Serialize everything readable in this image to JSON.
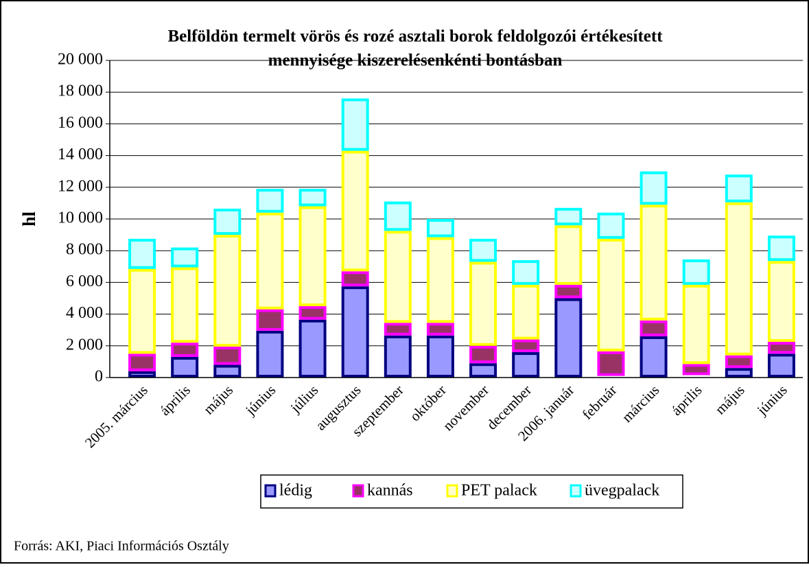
{
  "chart_data": {
    "type": "stacked_bar",
    "title": [
      "Belföldön termelt vörös és rozé asztali borok feldolgozói értékesített",
      "mennyisége kiszerelésenkénti bontásban"
    ],
    "y_label": "hl",
    "source": "Forrás: AKI, Piaci Információs Osztály",
    "categories": [
      "2005. március",
      "április",
      "május",
      "június",
      "július",
      "augusztus",
      "szeptember",
      "október",
      "november",
      "december",
      "2006. január",
      "február",
      "március",
      "április",
      "május",
      "június"
    ],
    "series": [
      {
        "name": "lédig",
        "color": "#9999ff",
        "stroke": "#000080",
        "values": [
          400,
          1300,
          800,
          2950,
          3650,
          5750,
          2650,
          2650,
          900,
          1600,
          5000,
          100,
          2600,
          150,
          600,
          1500
        ]
      },
      {
        "name": "kannás",
        "color": "#993366",
        "stroke": "#ff00ff",
        "values": [
          1100,
          900,
          1150,
          1350,
          850,
          950,
          800,
          800,
          1100,
          800,
          850,
          1550,
          1000,
          700,
          800,
          750
        ]
      },
      {
        "name": "PET palack",
        "color": "#ffffcc",
        "stroke": "#ffff00",
        "values": [
          5350,
          4750,
          7050,
          6100,
          6300,
          7600,
          5800,
          5400,
          5300,
          3450,
          3750,
          7100,
          7300,
          5000,
          9650,
          5100
        ]
      },
      {
        "name": "üvegpalack",
        "color": "#ccffff",
        "stroke": "#00ffff",
        "values": [
          1900,
          1250,
          1650,
          1500,
          1100,
          3300,
          1850,
          1150,
          1450,
          1550,
          1100,
          1650,
          2100,
          1600,
          1750,
          1600
        ]
      }
    ],
    "ylim": [
      0,
      20000
    ],
    "yticks": [
      0,
      {
        "value": 2000,
        "label": "2 000"
      },
      {
        "value": 4000,
        "label": "4 000"
      },
      {
        "value": 6000,
        "label": "6 000"
      },
      {
        "value": 8000,
        "label": "8 000"
      },
      {
        "value": 10000,
        "label": "10 000"
      },
      {
        "value": 12000,
        "label": "12 000"
      },
      {
        "value": 14000,
        "label": "14 000"
      },
      {
        "value": 16000,
        "label": "16 000"
      },
      {
        "value": 18000,
        "label": "18 000"
      },
      {
        "value": 20000,
        "label": "20 000"
      }
    ],
    "grid": true,
    "legend": "bottom"
  }
}
